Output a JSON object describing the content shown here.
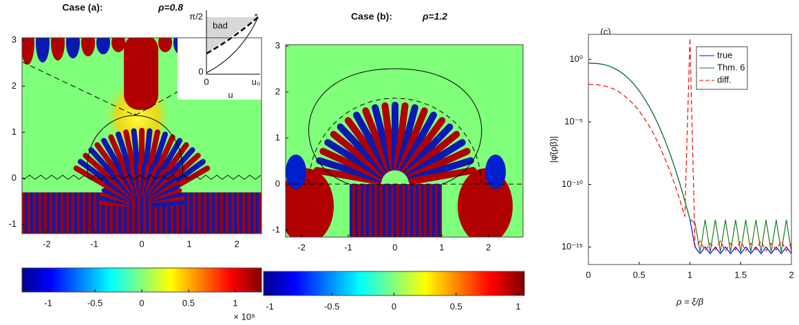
{
  "chart_data": [
    {
      "type": "heatmap",
      "title": "Case (a):",
      "subtitle": "ρ=0.8",
      "xlim": [
        -2.52,
        2.52
      ],
      "ylim": [
        -1.2,
        3.05
      ],
      "xticks": [
        -2,
        -1,
        0,
        1,
        2
      ],
      "yticks": [
        -1,
        0,
        1,
        2,
        3
      ],
      "colorbar": {
        "lim": [
          -1.28,
          1.28
        ],
        "ticks": [
          -1,
          -0.5,
          0,
          0.5,
          1
        ],
        "scale_label": "× 10⁸"
      },
      "inset": {
        "ytick_top": "π/2",
        "ytick_bottom": "0",
        "xtick_left": "0",
        "xtick_right": "u₀",
        "xlabel": "u",
        "region_label": "bad"
      }
    },
    {
      "type": "heatmap",
      "title": "Case (b):",
      "subtitle": "ρ=1.2",
      "xlim": [
        -2.34,
        2.74
      ],
      "ylim": [
        -1.15,
        3.03
      ],
      "xticks": [
        -2,
        -1,
        0,
        1,
        2
      ],
      "yticks": [
        -1,
        0,
        1,
        2,
        3
      ],
      "colorbar": {
        "lim": [
          -1.05,
          1.05
        ],
        "ticks": [
          -1,
          -0.5,
          0,
          0.5,
          1
        ]
      }
    },
    {
      "type": "line",
      "title": "(c)",
      "xlabel": "ρ = ξ/β",
      "ylabel": "|φ̂(ρβ)|",
      "log_y": true,
      "xlim": [
        0,
        2
      ],
      "ylim": [
        4e-17,
        100
      ],
      "xticks": [
        0,
        0.5,
        1,
        1.5,
        2
      ],
      "yticks": [
        {
          "value": 1,
          "label": "10⁰"
        },
        {
          "value": 1e-05,
          "label": "10⁻⁵"
        },
        {
          "value": 1e-10,
          "label": "10⁻¹⁰"
        },
        {
          "value": 1e-15,
          "label": "10⁻¹⁵"
        }
      ],
      "legend": "upper right",
      "x": [
        0,
        0.05,
        0.1,
        0.15,
        0.2,
        0.25,
        0.3,
        0.35,
        0.4,
        0.45,
        0.5,
        0.55,
        0.6,
        0.65,
        0.7,
        0.75,
        0.8,
        0.85,
        0.9,
        0.95,
        1,
        1.05,
        1.1,
        1.15,
        1.2,
        1.25,
        1.3,
        1.35,
        1.4,
        1.45,
        1.5,
        1.55,
        1.6,
        1.65,
        1.7,
        1.75,
        1.8,
        1.85,
        1.9,
        1.95,
        2
      ],
      "series": [
        {
          "name": "true",
          "color": "#0000ff",
          "dash": "solid",
          "values": [
            0.5,
            0.49,
            0.46,
            0.39,
            0.3,
            0.2,
            0.12,
            0.062,
            0.027,
            0.01,
            0.0031,
            0.00079,
            0.00016,
            2.8e-05,
            3.7e-06,
            4.1e-07,
            3.5e-08,
            2.3e-09,
            1.2e-10,
            5e-12,
            1.6e-13,
            1e-15,
            3e-16,
            1e-15,
            3e-16,
            1e-15,
            3e-16,
            1e-15,
            3e-16,
            1e-15,
            3e-16,
            1e-15,
            3e-16,
            1e-15,
            3e-16,
            1e-15,
            3e-16,
            1e-15,
            3e-16,
            1e-15,
            3e-16
          ]
        },
        {
          "name": "Thm. 6",
          "color": "#1a7a1a",
          "dash": "solid",
          "values": [
            0.5,
            0.49,
            0.46,
            0.39,
            0.3,
            0.2,
            0.12,
            0.062,
            0.027,
            0.01,
            0.0031,
            0.00079,
            0.00016,
            2.8e-05,
            3.7e-06,
            4.1e-07,
            3.5e-08,
            2.3e-09,
            1.2e-10,
            5e-12,
            1.6e-13,
            8e-14,
            4e-16,
            1.5e-13,
            4e-16,
            1.5e-13,
            4e-16,
            1.5e-13,
            4e-16,
            1.5e-13,
            4e-16,
            1.5e-13,
            4e-16,
            1.5e-13,
            4e-16,
            1.5e-13,
            4e-16,
            1.5e-13,
            4e-16,
            1.5e-13,
            4e-16
          ]
        },
        {
          "name": "diff.",
          "color": "#ff0000",
          "dash": "dashed",
          "values": [
            0.01,
            0.0098,
            0.0091,
            0.0079,
            0.0061,
            0.0042,
            0.0026,
            0.0013,
            0.00061,
            0.00023,
            7.6e-05,
            2e-05,
            4.5e-06,
            8.2e-07,
            1.2e-07,
            1.4e-08,
            1.4e-09,
            1e-10,
            6e-12,
            2.7e-13,
            50,
            1e-15,
            3e-15,
            5e-16,
            2e-15,
            6e-16,
            3e-15,
            5e-16,
            2e-15,
            6e-16,
            3e-15,
            5e-16,
            2e-15,
            6e-16,
            3e-15,
            5e-16,
            2e-15,
            6e-16,
            3e-15,
            5e-16,
            2e-15
          ]
        }
      ]
    }
  ]
}
